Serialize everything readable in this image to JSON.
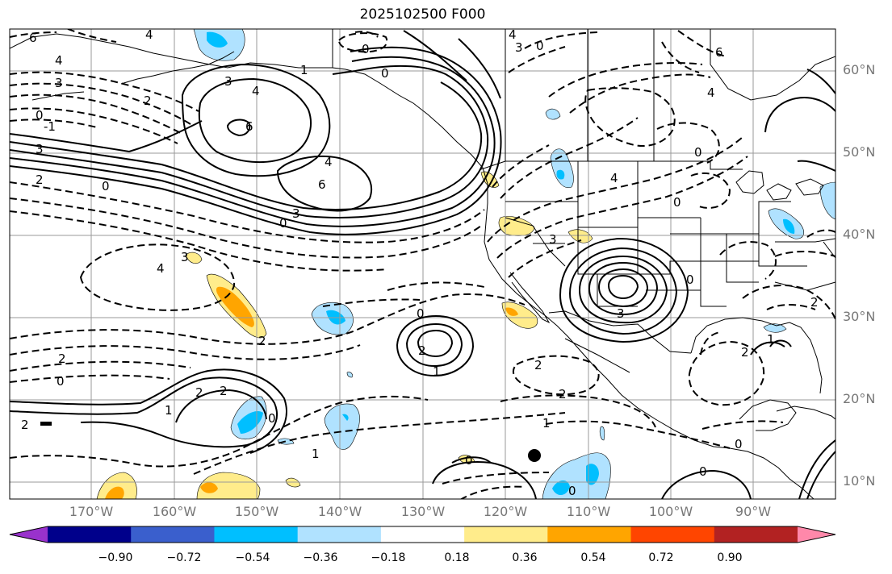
{
  "title": "2025102500 F000",
  "latitude_labels": [
    "60°N",
    "50°N",
    "40°N",
    "30°N",
    "20°N",
    "10°N"
  ],
  "longitude_labels": [
    "170°W",
    "160°W",
    "150°W",
    "140°W",
    "130°W",
    "120°W",
    "110°W",
    "100°W",
    "90°W"
  ],
  "colorbar": {
    "colors": [
      "#9932cc",
      "#00008b",
      "#3a5fcd",
      "#00bfff",
      "#b0e2ff",
      "#ffffff",
      "#ffec8b",
      "#ffa500",
      "#ff4500",
      "#b22222",
      "#ff88aa"
    ],
    "tick_labels": [
      "−0.90",
      "−0.72",
      "−0.54",
      "−0.36",
      "−0.18",
      "0.18",
      "0.36",
      "0.54",
      "0.72",
      "0.90"
    ],
    "extend": "both"
  },
  "contour_labels": [
    "6",
    "4",
    "3",
    "2",
    "0",
    "-1",
    "4",
    "2",
    "3",
    "0",
    "4",
    "1",
    "6",
    "4",
    "4",
    "0",
    "3",
    "6",
    "4",
    "6",
    "4",
    "0",
    "1",
    "0",
    "2",
    "4",
    "1",
    "2",
    "0",
    "3",
    "4",
    "3",
    "0",
    "2",
    "2",
    "1",
    "2",
    "2",
    "1",
    "1",
    "0",
    "0",
    "2",
    "0",
    "0",
    "1",
    "3",
    "2",
    "2",
    "0",
    "0",
    "0",
    "0",
    "3",
    "1"
  ],
  "fill_colors": {
    "light_blue": "#b0e2ff",
    "deep_sky_blue": "#00bfff",
    "light_yellow": "#ffec8b",
    "orange": "#ffa500"
  }
}
